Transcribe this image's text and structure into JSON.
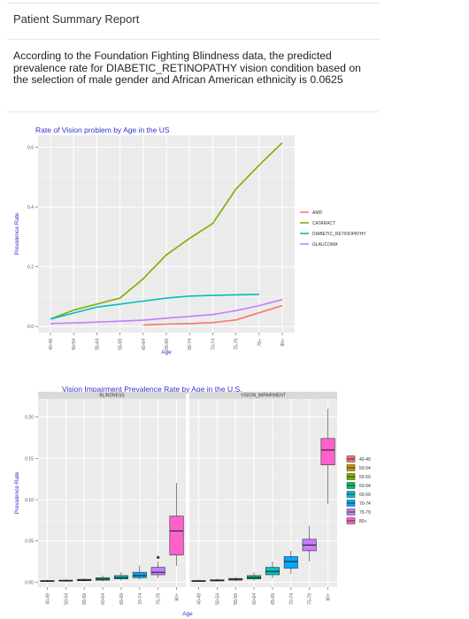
{
  "report": {
    "title": "Patient Summary Report",
    "summary": "According to the Foundation Fighting Blindness data, the predicted prevalence rate for DIABETIC_RETINOPATHY vision condition based on the selection of male gender and African American ethnicity is 0.0625"
  },
  "chart_data": [
    {
      "type": "line",
      "title": "Rate of Vision problem by Age in the US",
      "xlabel": "Age",
      "ylabel": "Prevalence Rate",
      "categories": [
        "40-49",
        "50-54",
        "55-64",
        "55-59",
        "60-64",
        "65-69",
        "65-74",
        "70-74",
        "75-79",
        "75+",
        "80+"
      ],
      "yticks": [
        0.0,
        0.2,
        0.4,
        0.6
      ],
      "ylim": [
        -0.02,
        0.64
      ],
      "grid": true,
      "legend_position": "right",
      "series": [
        {
          "name": "AMD",
          "color": "#f8766d",
          "values": [
            null,
            null,
            null,
            null,
            0.005,
            0.008,
            0.01,
            0.013,
            0.022,
            0.046,
            0.07
          ]
        },
        {
          "name": "CATARACT",
          "color": "#7cae00",
          "values": [
            0.025,
            0.055,
            0.075,
            0.095,
            0.16,
            0.24,
            0.295,
            0.345,
            0.46,
            0.54,
            0.615
          ]
        },
        {
          "name": "DIABETIC_RETINOPATHY",
          "color": "#00bfc4",
          "values": [
            0.025,
            0.045,
            0.065,
            0.075,
            0.085,
            0.095,
            0.102,
            0.104,
            0.106,
            0.108,
            null
          ]
        },
        {
          "name": "GLAUCOMA",
          "color": "#c77cff",
          "values": [
            0.01,
            0.012,
            0.015,
            0.018,
            0.021,
            0.028,
            0.034,
            0.04,
            0.053,
            0.07,
            0.09
          ]
        }
      ]
    },
    {
      "type": "box",
      "title": "Vision Impairment Prevalence Rate by Age in the U.S.",
      "xlabel": "Age",
      "ylabel": "Prevalence Rate",
      "facets": [
        "BLINDNESS",
        "VISION_IMPAIRMENT"
      ],
      "categories": [
        "40-49",
        "50-54",
        "55-59",
        "60-64",
        "65-69",
        "70-74",
        "75-79",
        "80+"
      ],
      "colors": [
        "#f8766d",
        "#cd9600",
        "#7cae00",
        "#00be67",
        "#00bfc4",
        "#00a9ff",
        "#c77cff",
        "#ff61cc"
      ],
      "yticks": [
        0.0,
        0.05,
        0.1,
        0.15,
        0.2
      ],
      "ylim": [
        -0.006,
        0.222
      ],
      "grid": true,
      "legend_position": "right",
      "boxes": [
        [
          {
            "min": 0.0,
            "q1": 0.001,
            "median": 0.0015,
            "q3": 0.002,
            "max": 0.003
          },
          {
            "min": 0.0005,
            "q1": 0.0012,
            "median": 0.0018,
            "q3": 0.0025,
            "max": 0.0035
          },
          {
            "min": 0.001,
            "q1": 0.0018,
            "median": 0.0025,
            "q3": 0.0035,
            "max": 0.005
          },
          {
            "min": 0.001,
            "q1": 0.0025,
            "median": 0.0035,
            "q3": 0.0055,
            "max": 0.008
          },
          {
            "min": 0.002,
            "q1": 0.004,
            "median": 0.0055,
            "q3": 0.008,
            "max": 0.012
          },
          {
            "min": 0.003,
            "q1": 0.0055,
            "median": 0.008,
            "q3": 0.012,
            "max": 0.02
          },
          {
            "min": 0.005,
            "q1": 0.009,
            "median": 0.012,
            "q3": 0.018,
            "max": 0.025,
            "outliers": [
              0.03
            ]
          },
          {
            "min": 0.02,
            "q1": 0.033,
            "median": 0.062,
            "q3": 0.08,
            "max": 0.12
          }
        ],
        [
          {
            "min": 0.0005,
            "q1": 0.001,
            "median": 0.0015,
            "q3": 0.002,
            "max": 0.003
          },
          {
            "min": 0.0005,
            "q1": 0.0015,
            "median": 0.002,
            "q3": 0.003,
            "max": 0.004
          },
          {
            "min": 0.001,
            "q1": 0.0025,
            "median": 0.0035,
            "q3": 0.0045,
            "max": 0.006
          },
          {
            "min": 0.002,
            "q1": 0.004,
            "median": 0.0055,
            "q3": 0.008,
            "max": 0.012
          },
          {
            "min": 0.005,
            "q1": 0.009,
            "median": 0.013,
            "q3": 0.018,
            "max": 0.025
          },
          {
            "min": 0.01,
            "q1": 0.017,
            "median": 0.025,
            "q3": 0.031,
            "max": 0.038
          },
          {
            "min": 0.025,
            "q1": 0.038,
            "median": 0.045,
            "q3": 0.052,
            "max": 0.068
          },
          {
            "min": 0.095,
            "q1": 0.142,
            "median": 0.16,
            "q3": 0.174,
            "max": 0.21
          }
        ]
      ]
    }
  ]
}
